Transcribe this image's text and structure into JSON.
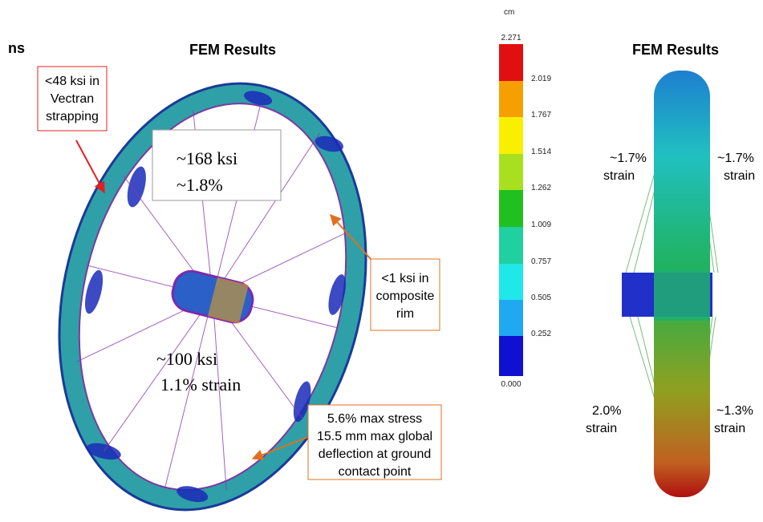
{
  "header_left": "ns",
  "left": {
    "title": "FEM Results",
    "strapping_box": [
      "<48 ksi in",
      "Vectran",
      "strapping"
    ],
    "spoke_box": [
      "~168 ksi",
      "~1.8%"
    ],
    "rim_box": [
      "<1 ksi in",
      "composite",
      "rim"
    ],
    "lower_spoke": [
      "~100 ksi",
      "1.1% strain"
    ],
    "ground_box": [
      "5.6% max stress",
      "15.5 mm max global",
      "deflection at ground",
      "contact point"
    ]
  },
  "colorbar": {
    "unit": "cm",
    "labels": [
      "2.271",
      "2.019",
      "1.767",
      "1.514",
      "1.262",
      "1.009",
      "0.757",
      "0.505",
      "0.252",
      "0.000"
    ]
  },
  "right": {
    "title": "FEM Results",
    "upper_left": [
      "~1.7%",
      "strain"
    ],
    "upper_right": [
      "~1.7%",
      "strain"
    ],
    "lower_left": [
      "2.0%",
      "strain"
    ],
    "lower_right": [
      "~1.3%",
      "strain"
    ]
  }
}
